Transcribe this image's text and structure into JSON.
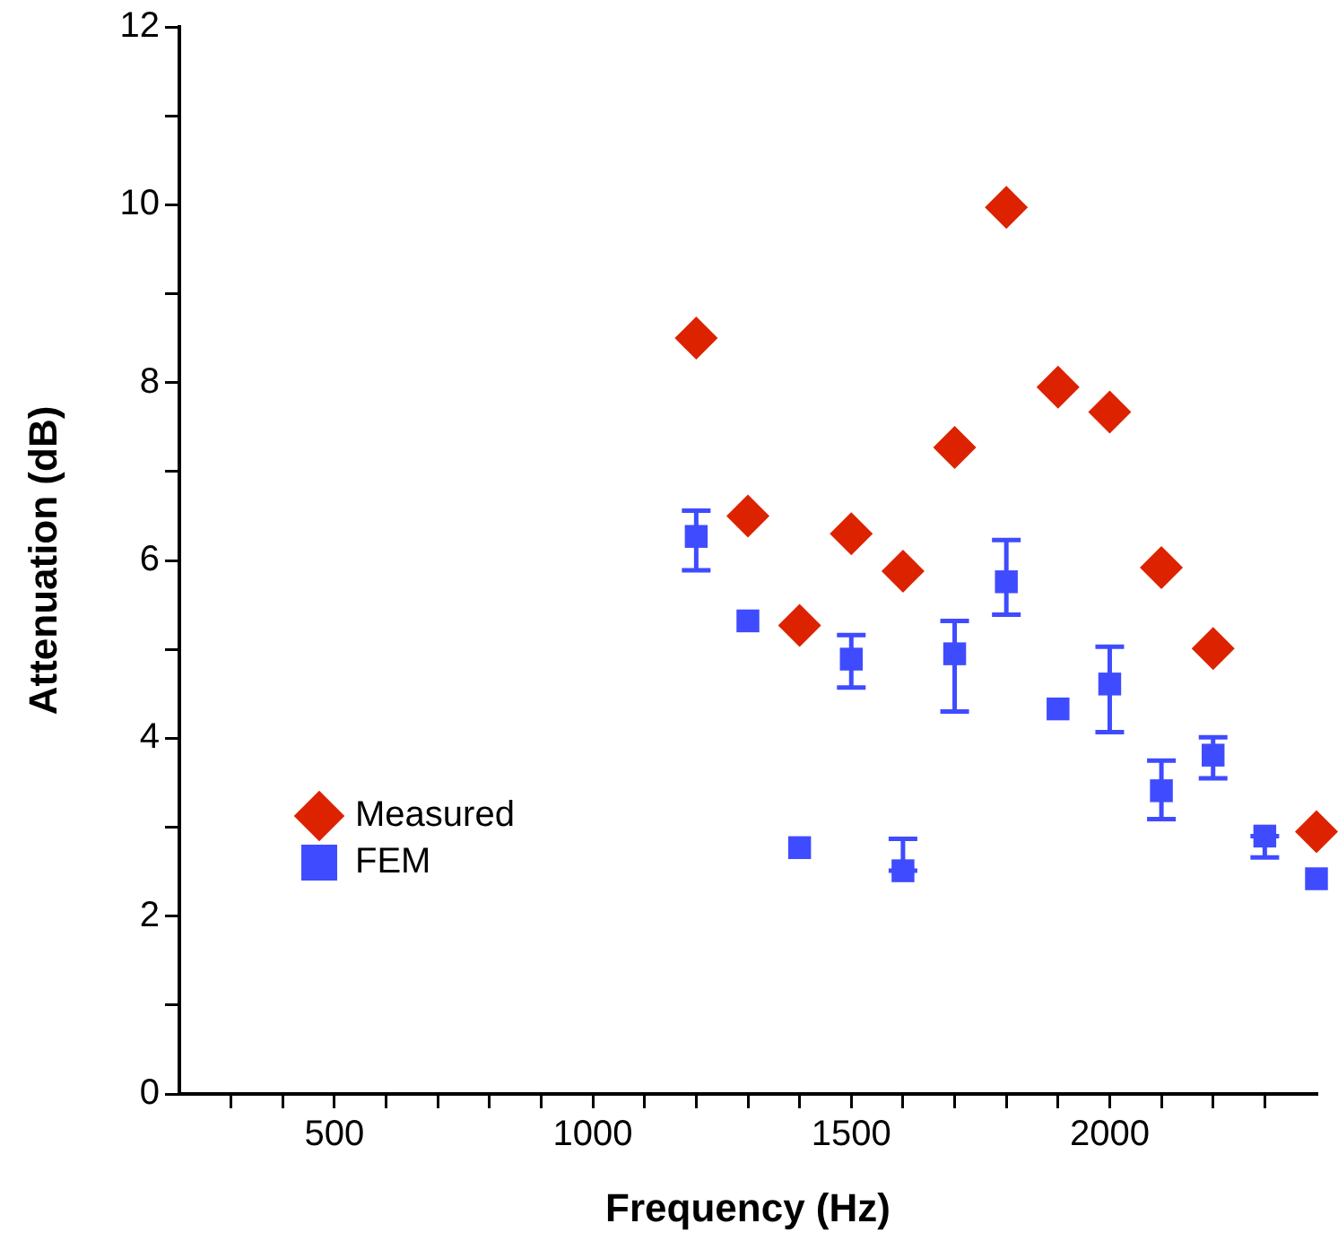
{
  "chart_data": {
    "type": "scatter",
    "xlabel": "Frequency (Hz)",
    "ylabel": "Attenuation (dB)",
    "x": [
      1200,
      1300,
      1400,
      1500,
      1600,
      1700,
      1800,
      1900,
      2000,
      2100,
      2200,
      2300,
      2400
    ],
    "series": [
      {
        "name": "Measured",
        "color": "#dd2200",
        "marker": "diamond",
        "values": [
          8.5,
          6.5,
          5.27,
          6.3,
          5.88,
          7.27,
          9.97,
          7.95,
          7.67,
          5.92,
          5.01,
          null,
          2.95
        ]
      },
      {
        "name": "FEM",
        "color": "#3f4bff",
        "marker": "square",
        "values": [
          6.27,
          5.32,
          2.77,
          4.89,
          2.51,
          4.95,
          5.76,
          4.33,
          4.61,
          3.41,
          3.81,
          2.9,
          2.42
        ],
        "errors": [
          [
            5.89,
            6.56
          ],
          null,
          null,
          [
            4.57,
            5.16
          ],
          [
            2.51,
            2.87
          ],
          [
            4.3,
            5.32
          ],
          [
            5.39,
            6.23
          ],
          null,
          [
            4.07,
            5.03
          ],
          [
            3.09,
            3.75
          ],
          [
            3.55,
            4.01
          ],
          [
            2.66,
            2.9
          ],
          null
        ]
      }
    ],
    "xlim": [
      200,
      2400
    ],
    "xticks": [
      {
        "value": 300,
        "label": null
      },
      {
        "value": 400,
        "label": null
      },
      500,
      {
        "value": 600,
        "label": null
      },
      {
        "value": 700,
        "label": null
      },
      {
        "value": 800,
        "label": null
      },
      {
        "value": 900,
        "label": null
      },
      1000,
      {
        "value": 1100,
        "label": null
      },
      {
        "value": 1200,
        "label": null
      },
      {
        "value": 1300,
        "label": null
      },
      {
        "value": 1400,
        "label": null
      },
      1500,
      {
        "value": 1600,
        "label": null
      },
      {
        "value": 1700,
        "label": null
      },
      {
        "value": 1800,
        "label": null
      },
      {
        "value": 1900,
        "label": null
      },
      2000,
      {
        "value": 2100,
        "label": null
      },
      {
        "value": 2200,
        "label": null
      },
      {
        "value": 2300,
        "label": null
      }
    ],
    "ylim": [
      0,
      12
    ],
    "yticks": [
      0,
      {
        "value": 1,
        "label": null
      },
      2,
      {
        "value": 3,
        "label": null
      },
      4,
      {
        "value": 5,
        "label": null
      },
      6,
      {
        "value": 7,
        "label": null
      },
      8,
      {
        "value": 9,
        "label": null
      },
      10,
      {
        "value": 11,
        "label": null
      },
      12
    ],
    "grid": false,
    "legend": "bottom left"
  }
}
